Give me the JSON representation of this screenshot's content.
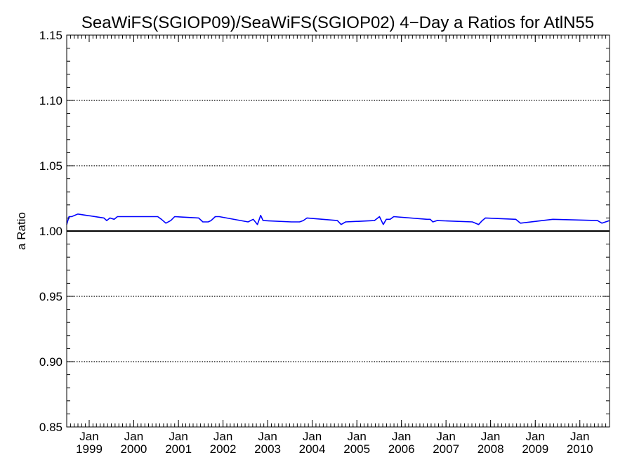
{
  "chart_data": {
    "type": "line",
    "title": "SeaWiFS(SGIOP09)/SeaWiFS(SGIOP02) 4−Day a Ratios for AtlN55",
    "xlabel": "",
    "ylabel": "a Ratio",
    "ylim": [
      0.85,
      1.15
    ],
    "y_ticks": [
      "0.85",
      "0.90",
      "0.95",
      "1.00",
      "1.05",
      "1.10",
      "1.15"
    ],
    "y_tick_values": [
      0.85,
      0.9,
      0.95,
      1.0,
      1.05,
      1.1,
      1.15
    ],
    "xlim": [
      "1998-07-01",
      "2010-09-01"
    ],
    "x_ticks": [
      {
        "month": "Jan",
        "year": "1999",
        "date": "1999-01-01"
      },
      {
        "month": "Jan",
        "year": "2000",
        "date": "2000-01-01"
      },
      {
        "month": "Jan",
        "year": "2001",
        "date": "2001-01-01"
      },
      {
        "month": "Jan",
        "year": "2002",
        "date": "2002-01-01"
      },
      {
        "month": "Jan",
        "year": "2003",
        "date": "2003-01-01"
      },
      {
        "month": "Jan",
        "year": "2004",
        "date": "2004-01-01"
      },
      {
        "month": "Jan",
        "year": "2005",
        "date": "2005-01-01"
      },
      {
        "month": "Jan",
        "year": "2006",
        "date": "2006-01-01"
      },
      {
        "month": "Jan",
        "year": "2007",
        "date": "2007-01-01"
      },
      {
        "month": "Jan",
        "year": "2008",
        "date": "2008-01-01"
      },
      {
        "month": "Jan",
        "year": "2009",
        "date": "2009-01-01"
      },
      {
        "month": "Jan",
        "year": "2010",
        "date": "2010-01-01"
      }
    ],
    "grid": "dotted horizontal at major y ticks",
    "reference_line": {
      "y": 1.0,
      "color": "#000000"
    },
    "series": [
      {
        "color": "#0000ff",
        "x": [
          "1998-07-01",
          "1998-07-20",
          "1998-08-10",
          "1998-09-30",
          "1999-05-01",
          "1999-05-25",
          "1999-06-20",
          "1999-07-25",
          "1999-08-20",
          "1999-09-20",
          "2000-07-15",
          "2000-08-15",
          "2000-09-20",
          "2000-10-30",
          "2000-12-01",
          "2001-06-15",
          "2001-07-20",
          "2001-09-01",
          "2001-09-25",
          "2001-10-30",
          "2001-12-01",
          "2002-07-25",
          "2002-09-05",
          "2002-10-10",
          "2002-11-05",
          "2002-11-25",
          "2003-07-15",
          "2003-08-25",
          "2003-09-20",
          "2003-10-20",
          "2003-11-20",
          "2004-07-25",
          "2004-08-25",
          "2004-10-01",
          "2005-05-25",
          "2005-07-05",
          "2005-08-05",
          "2005-08-30",
          "2005-09-30",
          "2005-10-30",
          "2006-07-30",
          "2006-08-25",
          "2006-09-15",
          "2006-10-20",
          "2007-08-05",
          "2007-09-25",
          "2007-10-25",
          "2007-11-20",
          "2008-07-25",
          "2008-09-01",
          "2009-05-25",
          "2010-05-25",
          "2010-07-01",
          "2010-09-01"
        ],
        "y": [
          1.005,
          1.011,
          1.011,
          1.013,
          1.01,
          1.008,
          1.01,
          1.009,
          1.011,
          1.011,
          1.011,
          1.009,
          1.006,
          1.008,
          1.011,
          1.01,
          1.007,
          1.007,
          1.008,
          1.011,
          1.011,
          1.007,
          1.009,
          1.005,
          1.012,
          1.008,
          1.007,
          1.007,
          1.007,
          1.008,
          1.01,
          1.008,
          1.005,
          1.007,
          1.008,
          1.011,
          1.005,
          1.009,
          1.009,
          1.011,
          1.009,
          1.009,
          1.007,
          1.008,
          1.007,
          1.005,
          1.008,
          1.01,
          1.009,
          1.006,
          1.009,
          1.008,
          1.006,
          1.008
        ]
      }
    ]
  }
}
